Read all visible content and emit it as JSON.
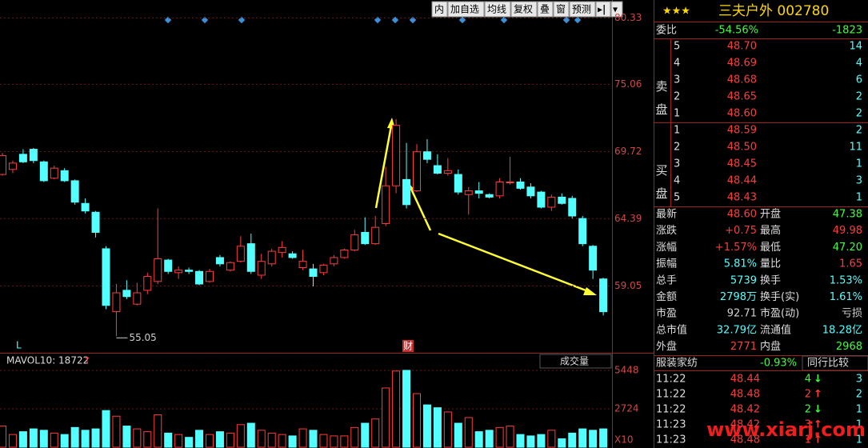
{
  "toolbar": {
    "items": [
      "内",
      "加自选",
      "均线",
      "复权",
      "叠",
      "窗",
      "预测"
    ],
    "icon": "▸|",
    "menu": "▾"
  },
  "chart_data": [
    {
      "type": "candlestick",
      "up_color": "#ff3c3c",
      "down_color": "#54ffff",
      "open": [
        67.9,
        68.3,
        69.5,
        69.9,
        68.9,
        67.6,
        68.2,
        67.4,
        65.6,
        64.9,
        62.0,
        57.0,
        58.7,
        57.6,
        58.7,
        59.4,
        61.1,
        60.1,
        60.3,
        60.2,
        59.4,
        61.3,
        60.3,
        61.0,
        62.4,
        59.9,
        60.8,
        61.7,
        61.6,
        60.5,
        60.4,
        60.1,
        60.8,
        61.3,
        61.9,
        63.3,
        62.4,
        64.0,
        67.0,
        67.5,
        66.6,
        69.7,
        68.6,
        68.0,
        67.9,
        66.3,
        66.6,
        66.3,
        66.2,
        67.3,
        67.3,
        66.9,
        66.5,
        65.3,
        66.1,
        66.0,
        64.4,
        62.2,
        59.6
      ],
      "high": [
        69.6,
        69.0,
        69.9,
        70.0,
        69.0,
        68.6,
        68.4,
        67.5,
        66.0,
        65.0,
        62.2,
        59.2,
        59.5,
        59.3,
        60.1,
        65.2,
        61.2,
        60.6,
        60.5,
        60.3,
        60.4,
        61.5,
        61.0,
        63.0,
        63.2,
        61.6,
        62.0,
        62.6,
        61.8,
        61.9,
        60.8,
        60.8,
        61.5,
        62.0,
        63.5,
        64.5,
        64.6,
        68.5,
        72.3,
        70.4,
        70.3,
        70.7,
        69.5,
        69.2,
        68.3,
        66.9,
        67.3,
        66.4,
        67.6,
        69.3,
        67.6,
        67.2,
        66.6,
        66.3,
        66.4,
        66.2,
        64.6,
        62.3,
        59.7
      ],
      "low": [
        67.8,
        68.0,
        68.8,
        68.8,
        67.3,
        67.5,
        67.3,
        65.5,
        64.8,
        62.9,
        57.2,
        55.05,
        58.0,
        57.5,
        58.4,
        59.2,
        60.0,
        59.6,
        60.0,
        59.1,
        59.3,
        60.6,
        60.2,
        60.9,
        60.0,
        59.6,
        60.6,
        61.3,
        61.2,
        60.3,
        59.0,
        59.9,
        60.6,
        61.2,
        61.8,
        62.3,
        62.3,
        63.8,
        66.4,
        65.2,
        66.5,
        68.8,
        67.9,
        67.8,
        66.3,
        64.7,
        66.0,
        66.0,
        66.0,
        67.1,
        66.7,
        66.0,
        65.2,
        65.0,
        65.5,
        64.4,
        62.2,
        59.6,
        56.7
      ],
      "close": [
        69.4,
        68.8,
        68.9,
        69.0,
        67.4,
        68.4,
        67.4,
        65.7,
        65.0,
        63.3,
        57.5,
        58.5,
        58.2,
        58.5,
        59.8,
        61.2,
        60.2,
        60.3,
        60.2,
        59.2,
        60.2,
        60.8,
        60.9,
        62.2,
        60.2,
        61.0,
        61.8,
        62.1,
        61.3,
        61.0,
        59.8,
        60.7,
        61.3,
        61.9,
        63.1,
        62.4,
        63.7,
        67.0,
        71.8,
        65.5,
        69.7,
        69.1,
        68.0,
        68.2,
        66.5,
        66.6,
        66.4,
        66.1,
        67.3,
        67.3,
        66.8,
        66.2,
        65.3,
        66.1,
        65.6,
        64.6,
        62.4,
        60.3,
        57.0
      ],
      "ylim": [
        53.8,
        80.8
      ],
      "yticks": [
        80.33,
        75.06,
        69.72,
        64.39,
        59.05
      ],
      "low_label": "55.05",
      "marks": [
        "L",
        "财"
      ]
    },
    {
      "type": "bar",
      "title": "MAVOL10: 18722",
      "title_arrow": "↑",
      "selector": "成交量",
      "values": [
        1500,
        900,
        1100,
        1300,
        1200,
        1000,
        900,
        1400,
        1200,
        1300,
        2600,
        2200,
        1500,
        1300,
        1100,
        2300,
        1000,
        900,
        700,
        1200,
        900,
        1100,
        1000,
        1600,
        1700,
        1200,
        1000,
        900,
        800,
        1300,
        1200,
        900,
        800,
        800,
        1400,
        1700,
        2000,
        4200,
        5400,
        5450,
        3800,
        3000,
        2800,
        2500,
        1700,
        2100,
        1100,
        1200,
        1400,
        1500,
        900,
        800,
        900,
        1200,
        600,
        1000,
        1300,
        1200,
        1300
      ],
      "ylim": [
        0,
        5900
      ],
      "yticks": [
        5448,
        2724
      ],
      "unit": "X10"
    }
  ],
  "quote": {
    "stars": "★★★",
    "name": "三夫户外 002780",
    "ratio": {
      "label": "委比",
      "pct": "-54.56%",
      "diff": "-1823"
    },
    "sell": {
      "label": "卖盘",
      "rows": [
        [
          "5",
          "48.70",
          "14"
        ],
        [
          "4",
          "48.69",
          "4"
        ],
        [
          "3",
          "48.68",
          "6"
        ],
        [
          "2",
          "48.65",
          "2"
        ],
        [
          "1",
          "48.60",
          "2"
        ]
      ]
    },
    "buy": {
      "label": "买盘",
      "rows": [
        [
          "1",
          "48.59",
          "2"
        ],
        [
          "2",
          "48.50",
          "11"
        ],
        [
          "3",
          "48.45",
          "1"
        ],
        [
          "4",
          "48.44",
          "3"
        ],
        [
          "5",
          "48.43",
          "1"
        ]
      ]
    },
    "stats": [
      {
        "l1": "最新",
        "v1": "48.60",
        "c1": "#ff3c3c",
        "l2": "开盘",
        "v2": "47.38",
        "c2": "#3cff3c"
      },
      {
        "l1": "涨跌",
        "v1": "+0.75",
        "c1": "#ff3c3c",
        "l2": "最高",
        "v2": "49.98",
        "c2": "#ff3c3c"
      },
      {
        "l1": "涨幅",
        "v1": "+1.57%",
        "c1": "#ff3c3c",
        "l2": "最低",
        "v2": "47.20",
        "c2": "#3cff3c"
      },
      {
        "l1": "振幅",
        "v1": "5.81%",
        "c1": "#54ffff",
        "l2": "量比",
        "v2": "1.65",
        "c2": "#ff3c3c"
      },
      {
        "l1": "总手",
        "v1": "5739",
        "c1": "#54ffff",
        "l2": "换手",
        "v2": "1.53%",
        "c2": "#54ffff"
      },
      {
        "l1": "金额",
        "v1": "2798万",
        "c1": "#54ffff",
        "l2": "换手(实)",
        "v2": "1.61%",
        "c2": "#54ffff"
      },
      {
        "l1": "市盈",
        "v1": "92.71",
        "c1": "#d0d0d0",
        "l2": "市盈(动)",
        "v2": "亏损",
        "c2": "#d0d0d0"
      },
      {
        "l1": "总市值",
        "v1": "32.79亿",
        "c1": "#54ffff",
        "l2": "流通值",
        "v2": "18.28亿",
        "c2": "#54ffff"
      },
      {
        "l1": "外盘",
        "v1": "2771",
        "c1": "#ff3c3c",
        "l2": "内盘",
        "v2": "2968",
        "c2": "#3cff3c"
      }
    ],
    "sector": {
      "name": "服装家纺",
      "change": "-0.93%",
      "compare": "同行比较"
    },
    "trades": [
      {
        "time": "11:22",
        "price": "48.44",
        "vol": "4",
        "arrow": "↓",
        "count": "3"
      },
      {
        "time": "11:22",
        "price": "48.48",
        "vol": "2",
        "arrow": "↑",
        "count": "2"
      },
      {
        "time": "11:22",
        "price": "48.42",
        "vol": "2",
        "arrow": "↓",
        "count": "1"
      },
      {
        "time": "11:23",
        "price": "48.42",
        "vol": "3",
        "arrow": "↑",
        "count": "1"
      },
      {
        "time": "11:23",
        "price": "48.48",
        "vol": "1",
        "arrow": "↑",
        "count": "1"
      }
    ],
    "watermark": "www.xiarj.com"
  }
}
